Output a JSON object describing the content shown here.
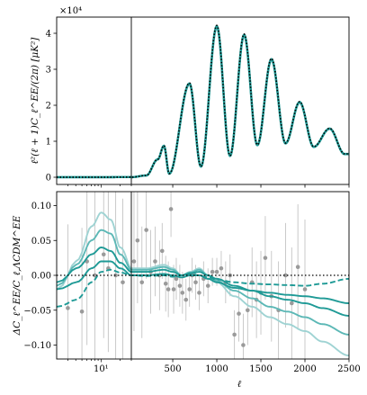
{
  "chart_data": [
    {
      "panel": "top",
      "type": "line",
      "ylabel": "ℓ²(ℓ + 1)C_ℓ^EE/(2π) [μK²]",
      "y_offset_label": "×10⁴",
      "yticks": [
        0,
        1,
        2,
        3,
        4
      ],
      "ylim": [
        -0.2,
        4.45
      ],
      "x_low_ticks": [],
      "x_high_ticks": [],
      "grid": false,
      "series": [
        {
          "name": "",
          "color": "#9fd3d3",
          "style": "solid"
        },
        {
          "name": "",
          "color": "#5cb8b6",
          "style": "solid"
        },
        {
          "name": "",
          "color": "#1f9a96",
          "style": "solid"
        },
        {
          "name": "",
          "color": "#000000",
          "style": "dotted"
        }
      ],
      "peaks": [
        {
          "x": 400,
          "y": 0.88
        },
        {
          "x": 690,
          "y": 2.62
        },
        {
          "x": 1000,
          "y": 4.22
        },
        {
          "x": 1310,
          "y": 3.98
        },
        {
          "x": 1620,
          "y": 3.3
        },
        {
          "x": 1940,
          "y": 2.1
        },
        {
          "x": 2280,
          "y": 1.36
        }
      ],
      "troughs": [
        {
          "x": 460,
          "y": 0.1
        },
        {
          "x": 820,
          "y": 0.3
        },
        {
          "x": 1150,
          "y": 0.6
        },
        {
          "x": 1460,
          "y": 0.9
        },
        {
          "x": 1780,
          "y": 0.95
        },
        {
          "x": 2100,
          "y": 0.85
        },
        {
          "x": 2450,
          "y": 0.65
        }
      ]
    },
    {
      "panel": "bottom",
      "type": "line",
      "xlabel": "ℓ",
      "ylabel": "ΔC_ℓ^EE/C_ℓ,ΛCDM^EE",
      "yticks": [
        "0.10",
        "0.05",
        "0.00",
        "−0.05",
        "−0.10"
      ],
      "ytick_values": [
        0.1,
        0.05,
        0.0,
        -0.05,
        -0.1
      ],
      "ylim": [
        -0.12,
        0.12
      ],
      "x_low_ticks": [
        "10¹"
      ],
      "x_high_ticks": [
        "500",
        "1000",
        "1500",
        "2000",
        "2500"
      ],
      "x_high_values": [
        500,
        1000,
        1500,
        2000,
        2500
      ],
      "xlim_low": [
        2,
        30
      ],
      "xlim_high": [
        30,
        2500
      ],
      "zero_line": "dotted",
      "grid": false,
      "series": [
        {
          "name": "",
          "color": "#9fd3d3",
          "style": "solid",
          "points": [
            [
              2,
              -0.02
            ],
            [
              4,
              0.02
            ],
            [
              7,
              0.07
            ],
            [
              10,
              0.09
            ],
            [
              14,
              0.08
            ],
            [
              20,
              0.04
            ],
            [
              30,
              0.01
            ],
            [
              200,
              0.01
            ],
            [
              400,
              0.015
            ],
            [
              500,
              0.01
            ],
            [
              600,
              0.0
            ],
            [
              700,
              0.005
            ],
            [
              800,
              0.01
            ],
            [
              900,
              0.0
            ],
            [
              1000,
              -0.01
            ],
            [
              1200,
              -0.03
            ],
            [
              1400,
              -0.045
            ],
            [
              1600,
              -0.06
            ],
            [
              1800,
              -0.07
            ],
            [
              2000,
              -0.08
            ],
            [
              2200,
              -0.095
            ],
            [
              2500,
              -0.115
            ]
          ]
        },
        {
          "name": "",
          "color": "#5cb8b6",
          "style": "solid",
          "points": [
            [
              2,
              -0.015
            ],
            [
              4,
              0.015
            ],
            [
              7,
              0.05
            ],
            [
              10,
              0.065
            ],
            [
              14,
              0.06
            ],
            [
              20,
              0.03
            ],
            [
              30,
              0.008
            ],
            [
              200,
              0.008
            ],
            [
              400,
              0.012
            ],
            [
              500,
              0.008
            ],
            [
              600,
              0.0
            ],
            [
              700,
              0.004
            ],
            [
              800,
              0.008
            ],
            [
              900,
              0.0
            ],
            [
              1000,
              -0.008
            ],
            [
              1200,
              -0.022
            ],
            [
              1400,
              -0.033
            ],
            [
              1600,
              -0.045
            ],
            [
              1800,
              -0.052
            ],
            [
              2000,
              -0.06
            ],
            [
              2200,
              -0.07
            ],
            [
              2500,
              -0.085
            ]
          ]
        },
        {
          "name": "",
          "color": "#1f9a96",
          "style": "solid",
          "points": [
            [
              2,
              -0.01
            ],
            [
              4,
              0.01
            ],
            [
              7,
              0.03
            ],
            [
              10,
              0.04
            ],
            [
              14,
              0.035
            ],
            [
              20,
              0.018
            ],
            [
              30,
              0.005
            ],
            [
              200,
              0.005
            ],
            [
              400,
              0.008
            ],
            [
              500,
              0.005
            ],
            [
              600,
              0.0
            ],
            [
              700,
              0.003
            ],
            [
              800,
              0.005
            ],
            [
              900,
              0.0
            ],
            [
              1000,
              -0.005
            ],
            [
              1200,
              -0.015
            ],
            [
              1400,
              -0.022
            ],
            [
              1600,
              -0.03
            ],
            [
              1800,
              -0.035
            ],
            [
              2000,
              -0.04
            ],
            [
              2200,
              -0.047
            ],
            [
              2500,
              -0.058
            ]
          ]
        },
        {
          "name": "",
          "color": "#1f9a96",
          "style": "solid",
          "points": [
            [
              2,
              -0.02
            ],
            [
              4,
              -0.01
            ],
            [
              7,
              0.01
            ],
            [
              10,
              0.02
            ],
            [
              14,
              0.02
            ],
            [
              20,
              0.01
            ],
            [
              30,
              0.0
            ],
            [
              200,
              0.0
            ],
            [
              400,
              0.002
            ],
            [
              500,
              0.0
            ],
            [
              600,
              -0.003
            ],
            [
              700,
              0.0
            ],
            [
              800,
              0.0
            ],
            [
              900,
              -0.005
            ],
            [
              1000,
              -0.01
            ],
            [
              1200,
              -0.018
            ],
            [
              1400,
              -0.022
            ],
            [
              1600,
              -0.025
            ],
            [
              1800,
              -0.028
            ],
            [
              2000,
              -0.03
            ],
            [
              2200,
              -0.033
            ],
            [
              2500,
              -0.04
            ]
          ]
        },
        {
          "name": "",
          "color": "#1f9a96",
          "style": "dashed",
          "points": [
            [
              2,
              -0.045
            ],
            [
              4,
              -0.035
            ],
            [
              7,
              -0.01
            ],
            [
              10,
              0.005
            ],
            [
              14,
              0.008
            ],
            [
              20,
              0.004
            ],
            [
              30,
              0.0
            ],
            [
              200,
              -0.001
            ],
            [
              400,
              0.0
            ],
            [
              500,
              -0.002
            ],
            [
              600,
              0.0
            ],
            [
              700,
              0.002
            ],
            [
              800,
              0.0
            ],
            [
              900,
              -0.003
            ],
            [
              1000,
              -0.006
            ],
            [
              1200,
              -0.01
            ],
            [
              1400,
              -0.012
            ],
            [
              1600,
              -0.013
            ],
            [
              1800,
              -0.014
            ],
            [
              2000,
              -0.015
            ],
            [
              2200,
              -0.012
            ],
            [
              2500,
              -0.005
            ]
          ]
        }
      ],
      "data_points": [
        {
          "x": 3,
          "y": -0.047,
          "err": 0.12
        },
        {
          "x": 5,
          "y": -0.052,
          "err": 0.12
        },
        {
          "x": 6,
          "y": 0.02,
          "err": 0.12
        },
        {
          "x": 8,
          "y": 0.0,
          "err": 0.12
        },
        {
          "x": 11,
          "y": 0.03,
          "err": 0.12
        },
        {
          "x": 13,
          "y": 0.01,
          "err": 0.12
        },
        {
          "x": 17,
          "y": 0.0,
          "err": 0.12
        },
        {
          "x": 22,
          "y": -0.01,
          "err": 0.12
        },
        {
          "x": 60,
          "y": 0.02,
          "err": 0.1
        },
        {
          "x": 100,
          "y": 0.05,
          "err": 0.09
        },
        {
          "x": 150,
          "y": -0.01,
          "err": 0.08
        },
        {
          "x": 200,
          "y": 0.065,
          "err": 0.07
        },
        {
          "x": 250,
          "y": 0.005,
          "err": 0.06
        },
        {
          "x": 300,
          "y": 0.02,
          "err": 0.05
        },
        {
          "x": 350,
          "y": 0.0,
          "err": 0.05
        },
        {
          "x": 380,
          "y": 0.035,
          "err": 0.04
        },
        {
          "x": 420,
          "y": -0.012,
          "err": 0.04
        },
        {
          "x": 450,
          "y": -0.02,
          "err": 0.04
        },
        {
          "x": 480,
          "y": 0.095,
          "err": 0.04
        },
        {
          "x": 510,
          "y": -0.02,
          "err": 0.035
        },
        {
          "x": 540,
          "y": -0.005,
          "err": 0.03
        },
        {
          "x": 580,
          "y": -0.015,
          "err": 0.03
        },
        {
          "x": 610,
          "y": -0.025,
          "err": 0.03
        },
        {
          "x": 650,
          "y": -0.035,
          "err": 0.03
        },
        {
          "x": 690,
          "y": -0.02,
          "err": 0.025
        },
        {
          "x": 720,
          "y": 0.0,
          "err": 0.025
        },
        {
          "x": 760,
          "y": -0.01,
          "err": 0.025
        },
        {
          "x": 800,
          "y": -0.025,
          "err": 0.025
        },
        {
          "x": 850,
          "y": -0.005,
          "err": 0.025
        },
        {
          "x": 900,
          "y": -0.015,
          "err": 0.025
        },
        {
          "x": 950,
          "y": 0.005,
          "err": 0.02
        },
        {
          "x": 1000,
          "y": 0.005,
          "err": 0.02
        },
        {
          "x": 1050,
          "y": 0.01,
          "err": 0.025
        },
        {
          "x": 1100,
          "y": -0.01,
          "err": 0.03
        },
        {
          "x": 1150,
          "y": 0.0,
          "err": 0.03
        },
        {
          "x": 1200,
          "y": -0.085,
          "err": 0.035
        },
        {
          "x": 1250,
          "y": -0.055,
          "err": 0.04
        },
        {
          "x": 1300,
          "y": -0.1,
          "err": 0.045
        },
        {
          "x": 1350,
          "y": -0.05,
          "err": 0.05
        },
        {
          "x": 1400,
          "y": -0.01,
          "err": 0.05
        },
        {
          "x": 1450,
          "y": -0.035,
          "err": 0.055
        },
        {
          "x": 1500,
          "y": -0.025,
          "err": 0.06
        },
        {
          "x": 1550,
          "y": 0.025,
          "err": 0.06
        },
        {
          "x": 1620,
          "y": -0.03,
          "err": 0.065
        },
        {
          "x": 1700,
          "y": -0.05,
          "err": 0.07
        },
        {
          "x": 1780,
          "y": 0.0,
          "err": 0.075
        },
        {
          "x": 1850,
          "y": -0.04,
          "err": 0.08
        },
        {
          "x": 1920,
          "y": 0.012,
          "err": 0.09
        },
        {
          "x": 2000,
          "y": -0.02,
          "err": 0.1
        }
      ]
    }
  ]
}
